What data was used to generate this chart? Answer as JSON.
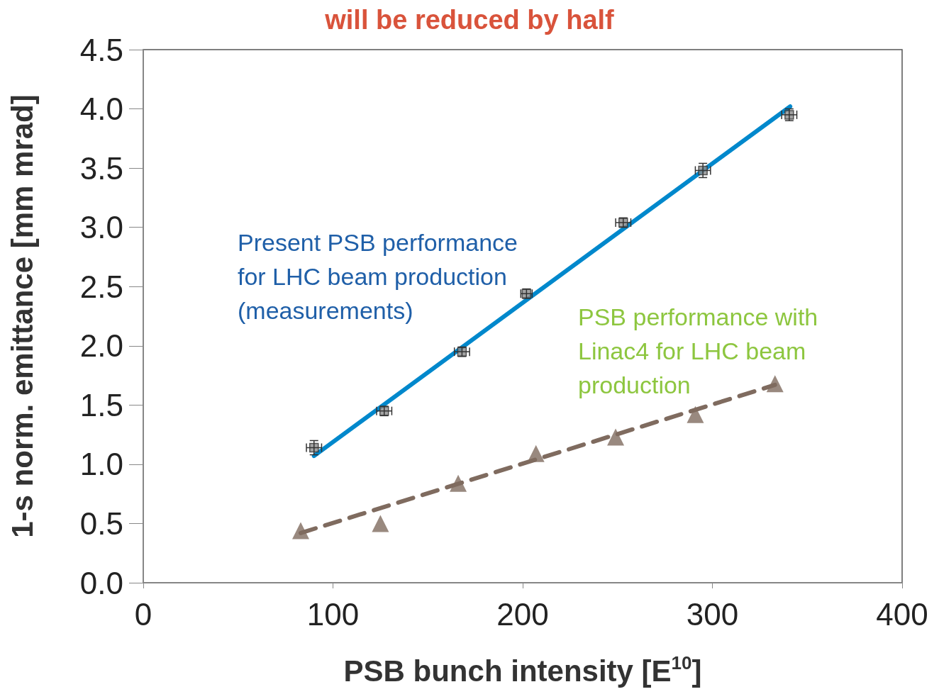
{
  "chart_data": {
    "type": "scatter",
    "title": "will be reduced by half",
    "xlabel": "PSB bunch intensity [E$^{10}$]",
    "ylabel": "1-s norm. emittance [mm mrad]",
    "xlim": [
      0,
      400
    ],
    "xticks": [
      0,
      100,
      200,
      300,
      400
    ],
    "ylim": [
      0,
      4.5
    ],
    "yticks": [
      {
        "value": 0,
        "label": "0.0"
      },
      {
        "value": 0.5,
        "label": "0.5"
      },
      {
        "value": 1,
        "label": "1.0"
      },
      {
        "value": 1.5,
        "label": "1.5"
      },
      {
        "value": 2,
        "label": "2.0"
      },
      {
        "value": 2.5,
        "label": "2.5"
      },
      {
        "value": 3,
        "label": "3.0"
      },
      {
        "value": 3.5,
        "label": "3.5"
      },
      {
        "value": 4,
        "label": "4.0"
      },
      {
        "value": 4.5,
        "label": "4.5"
      }
    ],
    "grid": false,
    "legend": false,
    "series": [
      {
        "marker": "square",
        "color": "#8c8c8c",
        "x": [
          90,
          127,
          168,
          202,
          253,
          295,
          340.5
        ],
        "values": [
          1.14,
          1.45,
          1.95,
          2.44,
          3.04,
          3.48,
          3.95
        ],
        "errors": [
          0.06,
          0.04,
          0.04,
          0.04,
          0.04,
          0.06,
          0.05
        ],
        "xerrors": [
          4,
          4,
          4,
          3,
          4,
          4,
          4
        ]
      },
      {
        "type": "line",
        "marker": "none",
        "line_style": "solid",
        "color": "#0088cc",
        "x": [
          90,
          341
        ],
        "values": [
          1.07,
          4.02
        ]
      },
      {
        "marker": "triangle",
        "color": "#7f6b5f",
        "x": [
          83,
          125,
          166,
          207,
          249,
          291,
          333
        ],
        "values": [
          0.44,
          0.5,
          0.84,
          1.09,
          1.23,
          1.42,
          1.68
        ]
      },
      {
        "type": "line",
        "marker": "none",
        "line_style": "dashed",
        "color": "#7f6b5f",
        "x": [
          83,
          333
        ],
        "values": [
          0.42,
          1.67
        ]
      }
    ],
    "annotations": [
      "Present PSB performance\nfor LHC beam production\n(measurements)",
      "PSB performance with\nLinac4 for LHC beam\nproduction"
    ]
  }
}
